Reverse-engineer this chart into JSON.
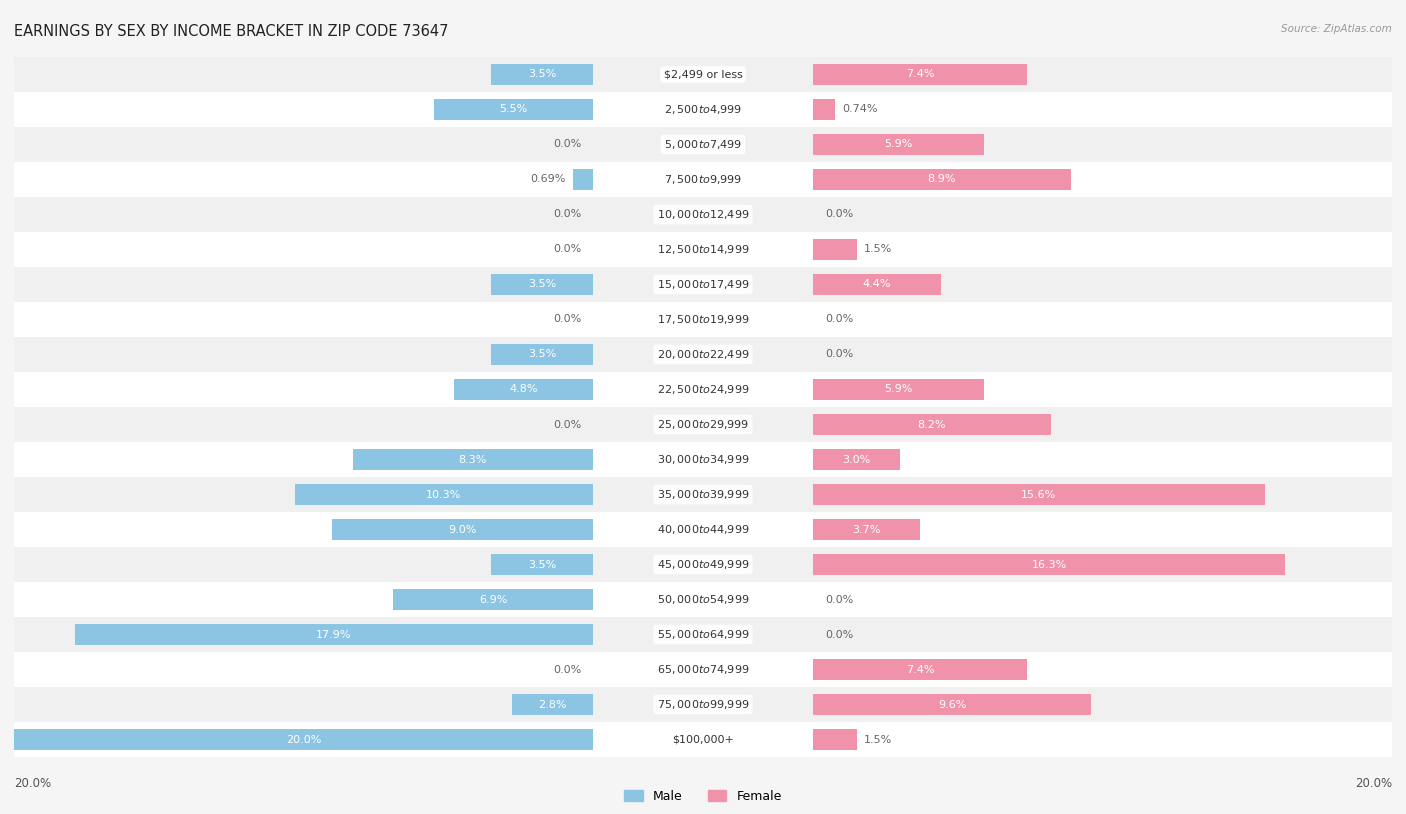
{
  "title": "EARNINGS BY SEX BY INCOME BRACKET IN ZIP CODE 73647",
  "source": "Source: ZipAtlas.com",
  "categories": [
    "$2,499 or less",
    "$2,500 to $4,999",
    "$5,000 to $7,499",
    "$7,500 to $9,999",
    "$10,000 to $12,499",
    "$12,500 to $14,999",
    "$15,000 to $17,499",
    "$17,500 to $19,999",
    "$20,000 to $22,499",
    "$22,500 to $24,999",
    "$25,000 to $29,999",
    "$30,000 to $34,999",
    "$35,000 to $39,999",
    "$40,000 to $44,999",
    "$45,000 to $49,999",
    "$50,000 to $54,999",
    "$55,000 to $64,999",
    "$65,000 to $74,999",
    "$75,000 to $99,999",
    "$100,000+"
  ],
  "male": [
    3.5,
    5.5,
    0.0,
    0.69,
    0.0,
    0.0,
    3.5,
    0.0,
    3.5,
    4.8,
    0.0,
    8.3,
    10.3,
    9.0,
    3.5,
    6.9,
    17.9,
    0.0,
    2.8,
    20.0
  ],
  "female": [
    7.4,
    0.74,
    5.9,
    8.9,
    0.0,
    1.5,
    4.4,
    0.0,
    0.0,
    5.9,
    8.2,
    3.0,
    15.6,
    3.7,
    16.3,
    0.0,
    0.0,
    7.4,
    9.6,
    1.5
  ],
  "male_labels": [
    "3.5%",
    "5.5%",
    "0.0%",
    "0.69%",
    "0.0%",
    "0.0%",
    "3.5%",
    "0.0%",
    "3.5%",
    "4.8%",
    "0.0%",
    "8.3%",
    "10.3%",
    "9.0%",
    "3.5%",
    "6.9%",
    "17.9%",
    "0.0%",
    "2.8%",
    "20.0%"
  ],
  "female_labels": [
    "7.4%",
    "0.74%",
    "5.9%",
    "8.9%",
    "0.0%",
    "1.5%",
    "4.4%",
    "0.0%",
    "0.0%",
    "5.9%",
    "8.2%",
    "3.0%",
    "15.6%",
    "3.7%",
    "16.3%",
    "0.0%",
    "0.0%",
    "7.4%",
    "9.6%",
    "1.5%"
  ],
  "male_color": "#8cc5e3",
  "female_color": "#f093aa",
  "male_label_inside_color": "#ffffff",
  "male_label_outside_color": "#666666",
  "female_label_inside_color": "#ffffff",
  "female_label_outside_color": "#666666",
  "row_color_even": "#f0f0f0",
  "row_color_odd": "#ffffff",
  "background_color": "#f5f5f5",
  "max_val": 20.0,
  "bar_height": 0.62,
  "title_fontsize": 10.5,
  "label_fontsize": 8.0,
  "category_fontsize": 8.0,
  "source_fontsize": 7.5,
  "legend_fontsize": 9.0,
  "scale_label": "20.0%"
}
